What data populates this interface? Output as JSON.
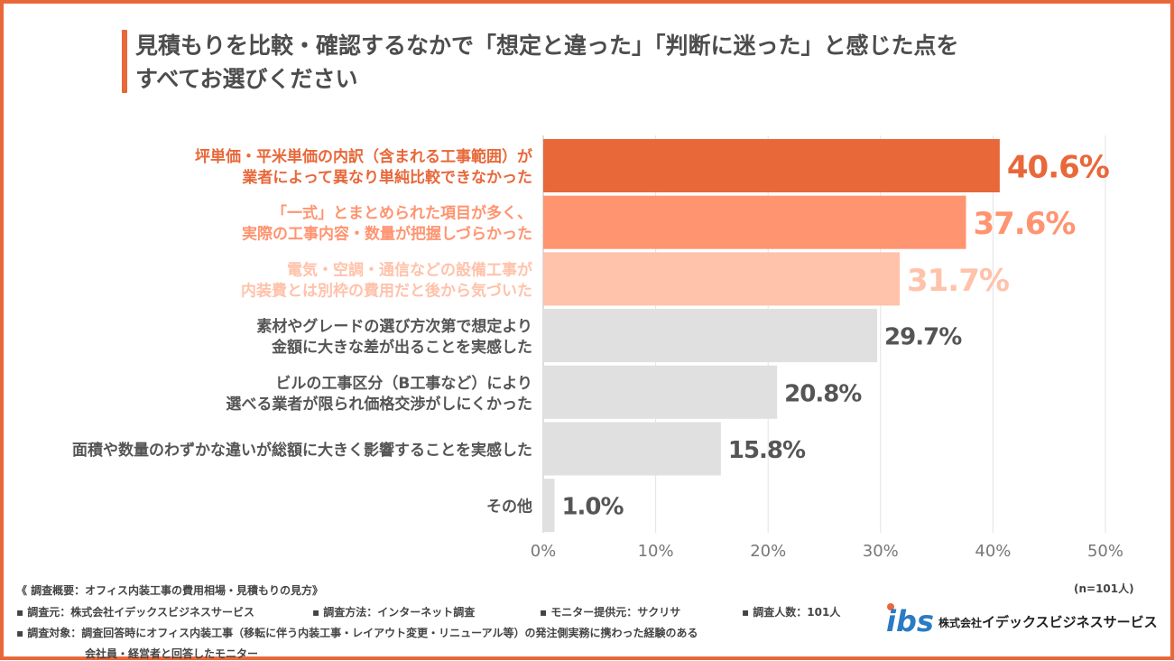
{
  "title": {
    "line1": "見積もりを比較・確認するなかで「想定と違った」「判断に迷った」と感じた点を",
    "line2": "すべてお選びください"
  },
  "chart_data": {
    "type": "bar",
    "orientation": "horizontal",
    "categories": [
      [
        "坪単価・平米単価の内訳（含まれる工事範囲）が",
        "業者によって異なり単純比較できなかった"
      ],
      [
        "「一式」とまとめられた項目が多く、",
        "実際の工事内容・数量が把握しづらかった"
      ],
      [
        "電気・空調・通信などの設備工事が",
        "内装費とは別枠の費用だと後から気づいた"
      ],
      [
        "素材やグレードの選び方次第で想定より",
        "金額に大きな差が出ることを実感した"
      ],
      [
        "ビルの工事区分（B工事など）により",
        "選べる業者が限られ価格交渉がしにくかった"
      ],
      [
        "面積や数量のわずかな違いが総額に大きく影響することを実感した"
      ],
      [
        "その他"
      ]
    ],
    "values": [
      40.6,
      37.6,
      31.7,
      29.7,
      20.8,
      15.8,
      1.0
    ],
    "value_labels": [
      "40.6%",
      "37.6%",
      "31.7%",
      "29.7%",
      "20.8%",
      "15.8%",
      "1.0%"
    ],
    "bar_colors": [
      "#E8683A",
      "#FF9470",
      "#FFC2AA",
      "#E0E0E0",
      "#E0E0E0",
      "#E0E0E0",
      "#E0E0E0"
    ],
    "label_colors": [
      "#E8683A",
      "#FF9470",
      "#FFC2AA",
      "#555555",
      "#555555",
      "#555555",
      "#555555"
    ],
    "xlim": [
      0,
      50
    ],
    "xticks": [
      "0%",
      "10%",
      "20%",
      "30%",
      "40%",
      "50%"
    ],
    "grid": true,
    "n_label": "(n=101人)"
  },
  "footer": {
    "summary": "《 調査概要：オフィス内装工事の費用相場・見積もりの見方》",
    "source": "▪ 調査元：株式会社イデックスビジネスサービス",
    "method": "▪ 調査方法：インターネット調査",
    "provider": "▪ モニター提供元：サクリサ",
    "count": "▪ 調査人数：101人",
    "target1": "▪ 調査対象：調査回答時にオフィス内装工事（移転に伴う内装工事・レイアウト変更・リニューアル等）の発注側実務に携わった経験のある",
    "target2": "会社員・経営者と回答したモニター"
  },
  "logo": {
    "mark": "ibs",
    "company_prefix": "株式会社",
    "company_name": "イデックスビジネスサービス",
    "colors": {
      "i": "#2A7BC4",
      "b": "#2A7BC4",
      "s": "#E8683A"
    }
  }
}
